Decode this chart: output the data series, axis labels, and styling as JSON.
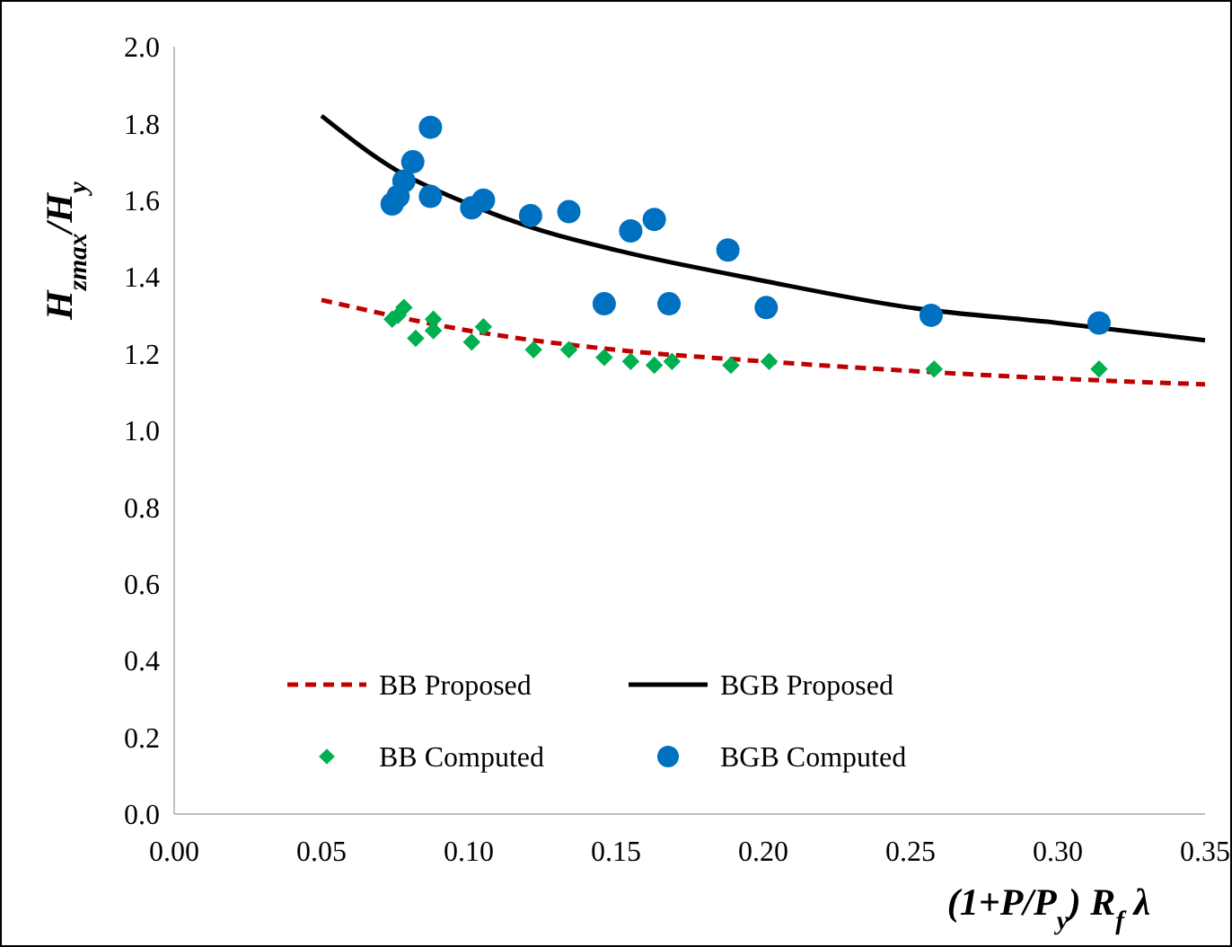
{
  "chart_data": {
    "type": "scatter",
    "xlabel": "(1+P/P$_{y}$) R$_{f}$ λ",
    "ylabel": "H$_{zmax}$/H$_{y}$",
    "xlim": [
      0,
      0.35
    ],
    "ylim": [
      0,
      2
    ],
    "xticks": [
      {
        "value": 0,
        "label": "0.00"
      },
      {
        "value": 0.05,
        "label": "0.05"
      },
      {
        "value": 0.1,
        "label": "0.10"
      },
      {
        "value": 0.15,
        "label": "0.15"
      },
      {
        "value": 0.2,
        "label": "0.20"
      },
      {
        "value": 0.25,
        "label": "0.25"
      },
      {
        "value": 0.3,
        "label": "0.30"
      },
      {
        "value": 0.35,
        "label": "0.35"
      }
    ],
    "yticks": [
      {
        "value": 0,
        "label": "0.0"
      },
      {
        "value": 0.2,
        "label": "0.2"
      },
      {
        "value": 0.4,
        "label": "0.4"
      },
      {
        "value": 0.6,
        "label": "0.6"
      },
      {
        "value": 0.8,
        "label": "0.8"
      },
      {
        "value": 1,
        "label": "1.0"
      },
      {
        "value": 1.2,
        "label": "1.2"
      },
      {
        "value": 1.4,
        "label": "1.4"
      },
      {
        "value": 1.6,
        "label": "1.6"
      },
      {
        "value": 1.8,
        "label": "1.8"
      },
      {
        "value": 2,
        "label": "2.0"
      }
    ],
    "legend": "bottom",
    "grid": false,
    "series": [
      {
        "name": "BB Proposed",
        "type": "line",
        "line_style": "dashed",
        "marker": "none",
        "color": "#c00000",
        "x": [
          0.05,
          0.1,
          0.15,
          0.2,
          0.25,
          0.3,
          0.35
        ],
        "values": [
          1.34,
          1.26,
          1.21,
          1.18,
          1.155,
          1.135,
          1.12
        ]
      },
      {
        "name": "BGB Proposed",
        "type": "line",
        "line_style": "solid",
        "marker": "none",
        "color": "#000000",
        "x": [
          0.05,
          0.075,
          0.1,
          0.125,
          0.15,
          0.2,
          0.25,
          0.3,
          0.35
        ],
        "values": [
          1.82,
          1.68,
          1.59,
          1.52,
          1.47,
          1.39,
          1.32,
          1.28,
          1.235
        ]
      },
      {
        "name": "BB Computed",
        "type": "scatter",
        "marker": "diamond",
        "color": "#00b050",
        "x": [
          0.074,
          0.076,
          0.078,
          0.082,
          0.088,
          0.088,
          0.101,
          0.105,
          0.122,
          0.134,
          0.146,
          0.155,
          0.163,
          0.169,
          0.189,
          0.202,
          0.258,
          0.314
        ],
        "values": [
          1.29,
          1.3,
          1.32,
          1.24,
          1.29,
          1.26,
          1.23,
          1.27,
          1.21,
          1.21,
          1.19,
          1.18,
          1.17,
          1.18,
          1.17,
          1.18,
          1.16,
          1.16
        ]
      },
      {
        "name": "BGB Computed",
        "type": "scatter",
        "marker": "circle",
        "color": "#0070c0",
        "x": [
          0.074,
          0.076,
          0.078,
          0.081,
          0.087,
          0.087,
          0.101,
          0.105,
          0.121,
          0.134,
          0.146,
          0.155,
          0.163,
          0.168,
          0.188,
          0.201,
          0.257,
          0.314
        ],
        "values": [
          1.59,
          1.61,
          1.65,
          1.7,
          1.79,
          1.61,
          1.58,
          1.6,
          1.56,
          1.57,
          1.33,
          1.52,
          1.55,
          1.33,
          1.47,
          1.32,
          1.3,
          1.28
        ]
      }
    ]
  }
}
